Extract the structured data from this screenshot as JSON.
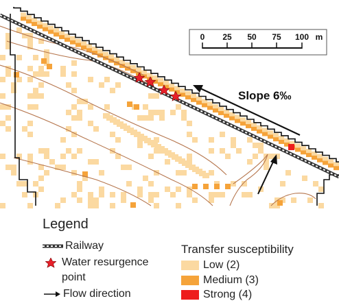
{
  "map": {
    "slope_label": "Slope 6‰",
    "scale_bar": {
      "ticks": [
        "0",
        "25",
        "50",
        "75",
        "100"
      ],
      "unit": "m"
    },
    "colors": {
      "low": "#fbd9a1",
      "medium": "#f5a33a",
      "strong": "#ee1c1c",
      "contour": "#b5754c",
      "boundary": "#111111",
      "star_fill": "#e8202a"
    }
  },
  "legend": {
    "title": "Legend",
    "railway_label": "Railway",
    "resurgence_label_line1": "Water resurgence",
    "resurgence_label_line2": "point",
    "flow_label": "Flow direction",
    "susceptibility_title": "Transfer susceptibility",
    "classes": [
      {
        "label": "Low (2)",
        "color": "#fbd9a1"
      },
      {
        "label": "Medium (3)",
        "color": "#f5a33a"
      },
      {
        "label": "Strong (4)",
        "color": "#ee1c1c"
      }
    ]
  }
}
